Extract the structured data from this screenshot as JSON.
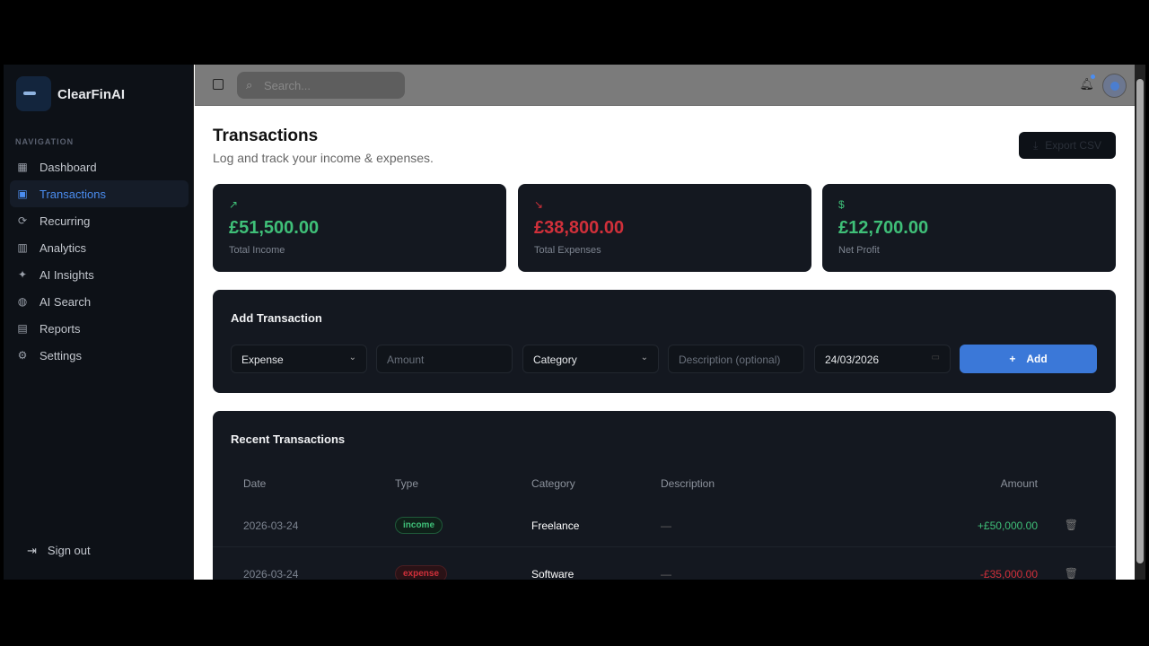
{
  "app": {
    "name": "ClearFinAI"
  },
  "sidebar": {
    "section_label": "NAVIGATION",
    "items": [
      {
        "label": "Dashboard",
        "icon": "dashboard-icon"
      },
      {
        "label": "Transactions",
        "icon": "wallet-icon",
        "active": true
      },
      {
        "label": "Recurring",
        "icon": "refresh-icon"
      },
      {
        "label": "Analytics",
        "icon": "bar-chart-icon"
      },
      {
        "label": "AI Insights",
        "icon": "sparkles-icon"
      },
      {
        "label": "AI Search",
        "icon": "globe-icon"
      },
      {
        "label": "Reports",
        "icon": "file-icon"
      },
      {
        "label": "Settings",
        "icon": "gear-icon"
      }
    ],
    "sign_out": "Sign out"
  },
  "header": {
    "search_placeholder": "Search..."
  },
  "page": {
    "title": "Transactions",
    "subtitle": "Log and track your income & expenses.",
    "export_label": "Export CSV"
  },
  "stats": [
    {
      "value": "£51,500.00",
      "label": "Total Income",
      "color": "#3fbf78",
      "icon": "trending-up-icon"
    },
    {
      "value": "£38,800.00",
      "label": "Total Expenses",
      "color": "#d0303a",
      "icon": "trending-down-icon"
    },
    {
      "value": "£12,700.00",
      "label": "Net Profit",
      "color": "#3fbf78",
      "icon": "dollar-icon"
    }
  ],
  "add_form": {
    "title": "Add Transaction",
    "type": "Expense",
    "amount_placeholder": "Amount",
    "category": "Category",
    "description_placeholder": "Description (optional)",
    "date": "24/03/2026",
    "add_label": "Add"
  },
  "recent": {
    "title": "Recent Transactions",
    "columns": [
      "Date",
      "Type",
      "Category",
      "Description",
      "Amount"
    ],
    "rows": [
      {
        "date": "2026-03-24",
        "type": "income",
        "category": "Freelance",
        "description": "—",
        "amount": "+£50,000.00"
      },
      {
        "date": "2026-03-24",
        "type": "expense",
        "category": "Software",
        "description": "—",
        "amount": "-£35,000.00"
      }
    ]
  }
}
